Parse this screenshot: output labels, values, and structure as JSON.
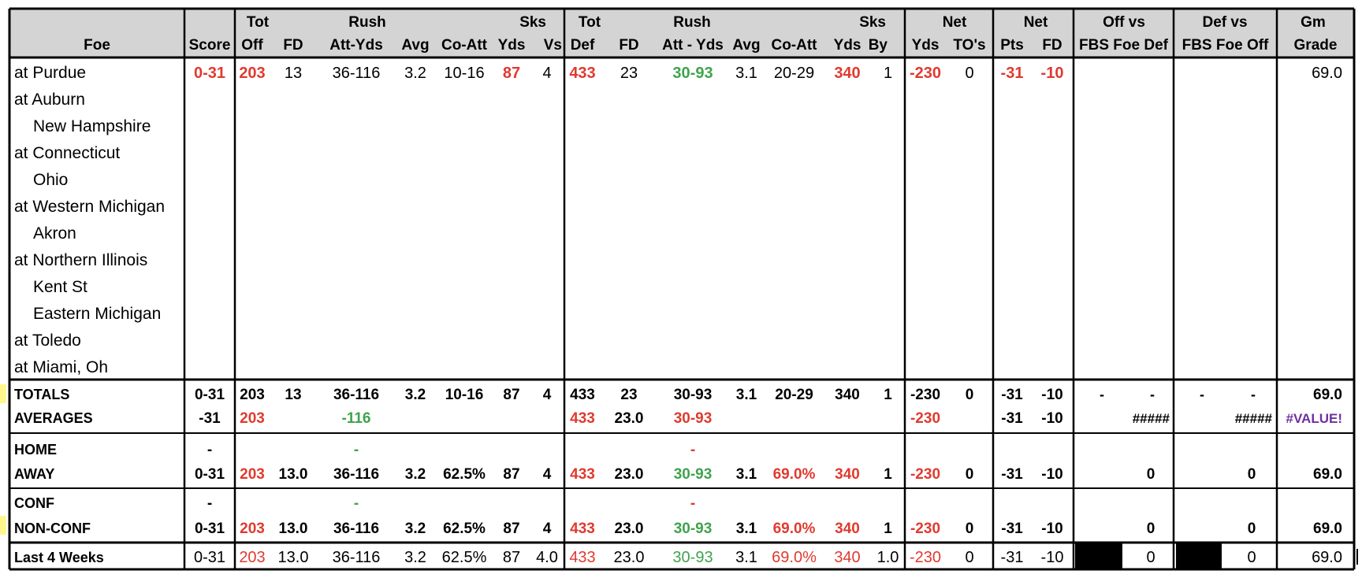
{
  "colors": {
    "red": "#e03a2f",
    "green": "#3fa34d",
    "purple": "#7030a0",
    "header_bg": "#d4d4d4",
    "marker": "#fff78c"
  },
  "headers": {
    "top": [
      "",
      "",
      "Tot",
      "",
      "Rush",
      "",
      "",
      "",
      "Sks",
      "Tot",
      "",
      "Rush",
      "",
      "",
      "",
      "Sks",
      "Net",
      "",
      "Net",
      "",
      "Off vs",
      "Def vs",
      "Gm"
    ],
    "bottom": [
      "Foe",
      "Score",
      "Off",
      "FD",
      "Att-Yds",
      "Avg",
      "Co-Att",
      "Yds",
      "Vs",
      "Def",
      "FD",
      "Att - Yds",
      "Avg",
      "Co-Att",
      "Yds",
      "By",
      "Yds",
      "TO's",
      "Pts",
      "FD",
      "FBS Foe Def",
      "FBS Foe Off",
      "Grade"
    ]
  },
  "games": [
    {
      "foe": "at Purdue",
      "indent": false,
      "cells": [
        "0-31",
        "203",
        "13",
        "36-116",
        "3.2",
        "10-16",
        "87",
        "4",
        "433",
        "23",
        "30-93",
        "3.1",
        "20-29",
        "340",
        "1",
        "-230",
        "0",
        "-31",
        "-10",
        "",
        "",
        "69.0"
      ],
      "colors": [
        "r",
        "r",
        "",
        "",
        "",
        "",
        "r",
        "",
        "r",
        "",
        "g",
        "",
        "",
        "r",
        "",
        "r",
        "",
        "r",
        "r",
        "",
        "",
        ""
      ]
    },
    {
      "foe": "at Auburn",
      "indent": false
    },
    {
      "foe": "New Hampshire",
      "indent": true
    },
    {
      "foe": "at Connecticut",
      "indent": false
    },
    {
      "foe": "Ohio",
      "indent": true
    },
    {
      "foe": "at Western Michigan",
      "indent": false
    },
    {
      "foe": "Akron",
      "indent": true
    },
    {
      "foe": "at Northern Illinois",
      "indent": false
    },
    {
      "foe": "Kent St",
      "indent": true
    },
    {
      "foe": "Eastern Michigan",
      "indent": true
    },
    {
      "foe": "at Toledo",
      "indent": false
    },
    {
      "foe": "at Miami, Oh",
      "indent": false
    }
  ],
  "summary": [
    {
      "label": "TOTALS",
      "cells": [
        "0-31",
        "203",
        "13",
        "36-116",
        "3.2",
        "10-16",
        "87",
        "4",
        "433",
        "23",
        "30-93",
        "3.1",
        "20-29",
        "340",
        "1",
        "-230",
        "0",
        "-31",
        "-10",
        "-|-",
        "-|-",
        "69.0"
      ],
      "colors": [
        "",
        "",
        "",
        "",
        "",
        "",
        "",
        "",
        "",
        "",
        "",
        "",
        "",
        "",
        "",
        "",
        "",
        "",
        "",
        "",
        "",
        ""
      ]
    },
    {
      "label": "AVERAGES",
      "cells": [
        "-31",
        "203",
        "",
        "-116",
        "",
        "",
        "",
        "",
        "433",
        "23.0",
        "30-93",
        "",
        "",
        "",
        "",
        "-230",
        "",
        "-31",
        "-10",
        "#####",
        "#####",
        "#VALUE!"
      ],
      "colors": [
        "",
        "r",
        "",
        "g",
        "",
        "",
        "",
        "",
        "r",
        "",
        "r",
        "",
        "",
        "",
        "",
        "r",
        "",
        "",
        "",
        "",
        "",
        "p"
      ]
    },
    {
      "label": "HOME",
      "cells": [
        "-",
        "",
        "",
        "-",
        "",
        "",
        "",
        "",
        "",
        "",
        "-",
        "",
        "",
        "",
        "",
        "",
        "",
        "",
        "",
        "",
        "",
        ""
      ],
      "colors": [
        "",
        "",
        "",
        "g",
        "",
        "",
        "",
        "",
        "",
        "",
        "r",
        "",
        "",
        "",
        "",
        "",
        "",
        "",
        "",
        "",
        "",
        ""
      ]
    },
    {
      "label": "AWAY",
      "cells": [
        "0-31",
        "203",
        "13.0",
        "36-116",
        "3.2",
        "62.5%",
        "87",
        "4",
        "433",
        "23.0",
        "30-93",
        "3.1",
        "69.0%",
        "340",
        "1",
        "-230",
        "0",
        "-31",
        "-10",
        "0",
        "0",
        "69.0"
      ],
      "colors": [
        "",
        "r",
        "",
        "",
        "",
        "",
        "",
        "",
        "r",
        "",
        "g",
        "",
        "r",
        "r",
        "",
        "r",
        "",
        "",
        "",
        "",
        "",
        ""
      ]
    },
    {
      "label": "CONF",
      "cells": [
        "-",
        "",
        "",
        "-",
        "",
        "",
        "",
        "",
        "",
        "",
        "-",
        "",
        "",
        "",
        "",
        "",
        "",
        "",
        "",
        "",
        "",
        ""
      ],
      "colors": [
        "",
        "",
        "",
        "g",
        "",
        "",
        "",
        "",
        "",
        "",
        "r",
        "",
        "",
        "",
        "",
        "",
        "",
        "",
        "",
        "",
        "",
        ""
      ]
    },
    {
      "label": "NON-CONF",
      "cells": [
        "0-31",
        "203",
        "13.0",
        "36-116",
        "3.2",
        "62.5%",
        "87",
        "4",
        "433",
        "23.0",
        "30-93",
        "3.1",
        "69.0%",
        "340",
        "1",
        "-230",
        "0",
        "-31",
        "-10",
        "0",
        "0",
        "69.0"
      ],
      "colors": [
        "",
        "r",
        "",
        "",
        "",
        "",
        "",
        "",
        "r",
        "",
        "g",
        "",
        "r",
        "r",
        "",
        "r",
        "",
        "",
        "",
        "",
        "",
        ""
      ]
    },
    {
      "label": "Last 4 Weeks",
      "cells": [
        "0-31",
        "203",
        "13.0",
        "36-116",
        "3.2",
        "62.5%",
        "87",
        "4.0",
        "433",
        "23.0",
        "30-93",
        "3.1",
        "69.0%",
        "340",
        "1.0",
        "-230",
        "0",
        "-31",
        "-10",
        "0",
        "0",
        "69.0"
      ],
      "colors": [
        "",
        "r",
        "",
        "",
        "",
        "",
        "",
        "",
        "r",
        "",
        "g",
        "",
        "r",
        "r",
        "",
        "r",
        "",
        "",
        "",
        "",
        "",
        ""
      ]
    }
  ]
}
